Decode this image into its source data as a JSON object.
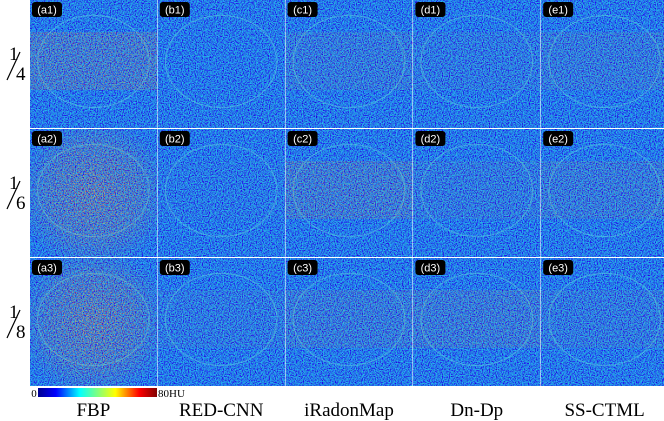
{
  "rows": [
    {
      "numerator": "1",
      "denominator": "4"
    },
    {
      "numerator": "1",
      "denominator": "6"
    },
    {
      "numerator": "1",
      "denominator": "8"
    }
  ],
  "columns": [
    "FBP",
    "RED-CNN",
    "iRadonMap",
    "Dn-Dp",
    "SS-CTML"
  ],
  "panels": [
    [
      "(a1)",
      "(b1)",
      "(c1)",
      "(d1)",
      "(e1)"
    ],
    [
      "(a2)",
      "(b2)",
      "(c2)",
      "(d2)",
      "(e2)"
    ],
    [
      "(a3)",
      "(b3)",
      "(c3)",
      "(d3)",
      "(e3)"
    ]
  ],
  "colorbar": {
    "min_label": "0",
    "max_label": "80HU"
  }
}
